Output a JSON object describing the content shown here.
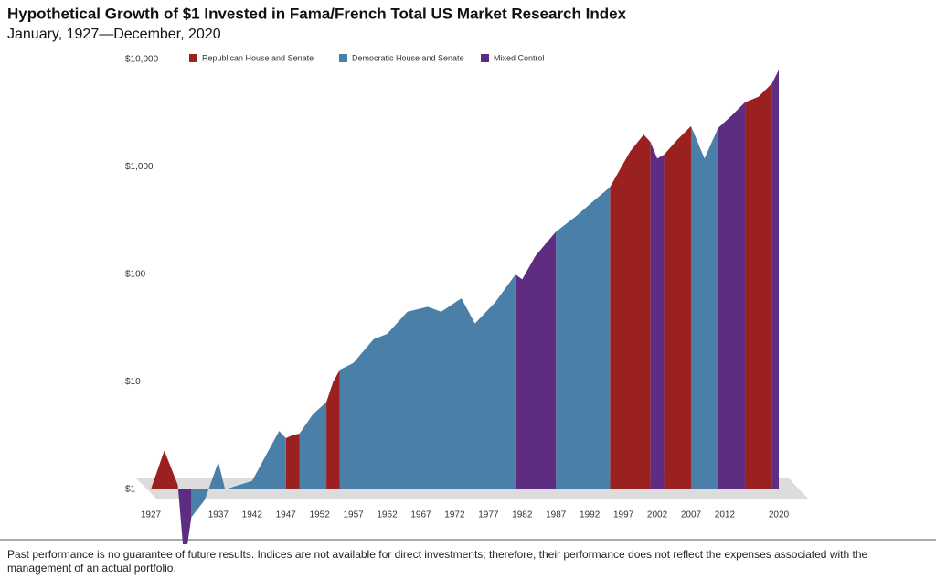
{
  "chart_data": {
    "type": "area",
    "title": "Hypothetical Growth of $1 Invested in Fama/French Total US Market Research Index",
    "subtitle": "January, 1927—December, 2020",
    "footnote": "Past performance is no guarantee of future results. Indices are not available for direct investments; therefore, their performance does not reflect the expenses associated with the management of an actual portfolio.",
    "log_scale": true,
    "x": [
      1927,
      1929,
      1931,
      1932,
      1933,
      1935,
      1937,
      1938,
      1942,
      1946,
      1947,
      1948,
      1949,
      1951,
      1953,
      1954,
      1955,
      1957,
      1960,
      1962,
      1965,
      1968,
      1970,
      1973,
      1975,
      1978,
      1981,
      1982,
      1984,
      1987,
      1990,
      1992,
      1995,
      1998,
      2000,
      2001,
      2002,
      2003,
      2005,
      2007,
      2009,
      2011,
      2013,
      2015,
      2017,
      2019,
      2020
    ],
    "series": [
      {
        "name": "Republican House and Senate",
        "color": "#9b2121",
        "values": [
          1,
          2.3,
          1.1,
          null,
          null,
          null,
          null,
          null,
          null,
          null,
          3.0,
          3.2,
          3.3,
          null,
          6.5,
          10,
          13,
          null,
          null,
          null,
          null,
          null,
          null,
          null,
          null,
          null,
          null,
          null,
          null,
          null,
          null,
          null,
          650,
          1400,
          2000,
          1700,
          null,
          1300,
          1800,
          2400,
          null,
          null,
          null,
          4000,
          4500,
          6000,
          null
        ]
      },
      {
        "name": "Democratic House and Senate",
        "color": "#4a80a8",
        "values": [
          null,
          null,
          null,
          null,
          0.55,
          0.8,
          1.8,
          1.0,
          1.2,
          3.5,
          3.0,
          null,
          3.3,
          5,
          6.5,
          null,
          13,
          15,
          25,
          28,
          45,
          50,
          45,
          60,
          35,
          55,
          100,
          null,
          null,
          250,
          350,
          450,
          650,
          null,
          null,
          null,
          null,
          null,
          null,
          2400,
          1200,
          2300,
          null,
          null,
          null,
          null,
          null
        ]
      },
      {
        "name": "Mixed Control",
        "color": "#5e2d82",
        "values": [
          null,
          null,
          1.1,
          0.2,
          0.55,
          null,
          null,
          null,
          null,
          null,
          null,
          null,
          null,
          null,
          null,
          null,
          null,
          null,
          null,
          null,
          null,
          null,
          null,
          null,
          null,
          null,
          100,
          90,
          150,
          250,
          null,
          null,
          null,
          null,
          null,
          1700,
          1200,
          1300,
          null,
          null,
          null,
          2300,
          3000,
          4000,
          null,
          6000,
          8000
        ]
      }
    ],
    "xlim": [
      1926.5,
      2021
    ],
    "xticks": [
      1927,
      1937,
      1942,
      1947,
      1952,
      1957,
      1962,
      1967,
      1972,
      1977,
      1982,
      1987,
      1992,
      1997,
      2002,
      2007,
      2012,
      2020
    ],
    "ylim": [
      1,
      10000
    ],
    "yticks": [
      {
        "value": 1,
        "label": "$1"
      },
      {
        "value": 10,
        "label": "$10"
      },
      {
        "value": 100,
        "label": "$100"
      },
      {
        "value": 1000,
        "label": "$1,000"
      },
      {
        "value": 10000,
        "label": "$10,000"
      }
    ]
  }
}
